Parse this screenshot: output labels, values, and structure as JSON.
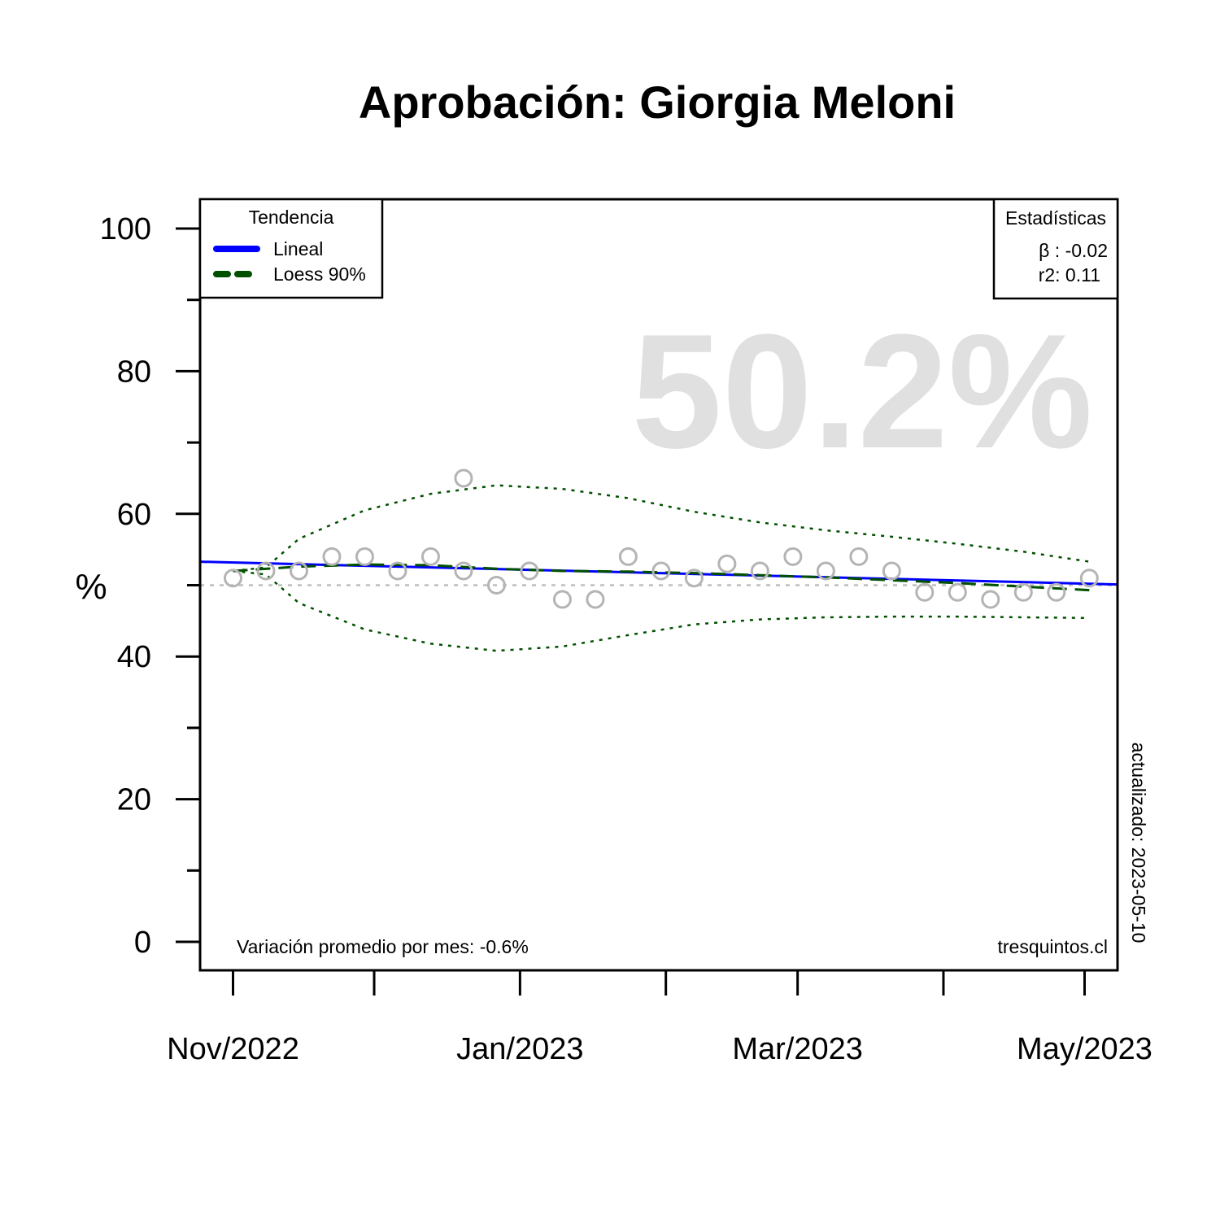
{
  "chart_data": {
    "type": "scatter",
    "title": "Aprobación: Giorgia Meloni",
    "xlabel": "",
    "ylabel": "%",
    "ylim": [
      0,
      100
    ],
    "y_ticks": [
      0,
      20,
      40,
      60,
      80,
      100
    ],
    "x_tick_labels": [
      {
        "date": "2022-11-01",
        "label": "Nov/2022"
      },
      {
        "date": "2023-01-01",
        "label": "Jan/2023"
      },
      {
        "date": "2023-03-01",
        "label": "Mar/2023"
      },
      {
        "date": "2023-05-01",
        "label": "May/2023"
      }
    ],
    "x_minor_ticks": [
      "2022-12-01",
      "2023-02-01",
      "2023-04-01"
    ],
    "x_range": [
      "2022-10-25",
      "2023-05-08"
    ],
    "points": [
      {
        "x": "2022-11-01",
        "y": 51
      },
      {
        "x": "2022-11-08",
        "y": 52
      },
      {
        "x": "2022-11-15",
        "y": 52
      },
      {
        "x": "2022-11-22",
        "y": 54
      },
      {
        "x": "2022-11-29",
        "y": 54
      },
      {
        "x": "2022-12-06",
        "y": 52
      },
      {
        "x": "2022-12-13",
        "y": 54
      },
      {
        "x": "2022-12-20",
        "y": 65
      },
      {
        "x": "2022-12-20",
        "y": 52
      },
      {
        "x": "2022-12-27",
        "y": 50
      },
      {
        "x": "2023-01-03",
        "y": 52
      },
      {
        "x": "2023-01-10",
        "y": 48
      },
      {
        "x": "2023-01-17",
        "y": 48
      },
      {
        "x": "2023-01-24",
        "y": 54
      },
      {
        "x": "2023-01-31",
        "y": 52
      },
      {
        "x": "2023-02-07",
        "y": 51
      },
      {
        "x": "2023-02-14",
        "y": 53
      },
      {
        "x": "2023-02-21",
        "y": 52
      },
      {
        "x": "2023-02-28",
        "y": 54
      },
      {
        "x": "2023-03-07",
        "y": 52
      },
      {
        "x": "2023-03-14",
        "y": 54
      },
      {
        "x": "2023-03-21",
        "y": 52
      },
      {
        "x": "2023-03-28",
        "y": 49
      },
      {
        "x": "2023-04-04",
        "y": 49
      },
      {
        "x": "2023-04-11",
        "y": 48
      },
      {
        "x": "2023-04-18",
        "y": 49
      },
      {
        "x": "2023-04-25",
        "y": 49
      },
      {
        "x": "2023-05-02",
        "y": 51
      }
    ],
    "linear_trend": [
      {
        "x": "2022-10-25",
        "y": 53.3
      },
      {
        "x": "2023-05-08",
        "y": 50.1
      }
    ],
    "loess": [
      {
        "x": "2022-11-01",
        "y": 52.0
      },
      {
        "x": "2022-11-15",
        "y": 52.6
      },
      {
        "x": "2022-11-29",
        "y": 52.9
      },
      {
        "x": "2022-12-13",
        "y": 52.8
      },
      {
        "x": "2022-12-27",
        "y": 52.3
      },
      {
        "x": "2023-01-10",
        "y": 52.0
      },
      {
        "x": "2023-01-24",
        "y": 51.9
      },
      {
        "x": "2023-02-07",
        "y": 51.7
      },
      {
        "x": "2023-02-21",
        "y": 51.4
      },
      {
        "x": "2023-03-07",
        "y": 51.1
      },
      {
        "x": "2023-03-21",
        "y": 50.7
      },
      {
        "x": "2023-04-04",
        "y": 50.3
      },
      {
        "x": "2023-04-18",
        "y": 49.8
      },
      {
        "x": "2023-05-02",
        "y": 49.3
      }
    ],
    "loess_upper": [
      {
        "x": "2022-11-01",
        "y": 52.0
      },
      {
        "x": "2022-11-08",
        "y": 52.5
      },
      {
        "x": "2022-11-15",
        "y": 56.5
      },
      {
        "x": "2022-11-29",
        "y": 60.5
      },
      {
        "x": "2022-12-13",
        "y": 62.8
      },
      {
        "x": "2022-12-27",
        "y": 64.0
      },
      {
        "x": "2023-01-10",
        "y": 63.5
      },
      {
        "x": "2023-01-24",
        "y": 62.2
      },
      {
        "x": "2023-02-07",
        "y": 60.3
      },
      {
        "x": "2023-02-21",
        "y": 58.8
      },
      {
        "x": "2023-03-07",
        "y": 57.7
      },
      {
        "x": "2023-03-21",
        "y": 56.8
      },
      {
        "x": "2023-04-04",
        "y": 55.8
      },
      {
        "x": "2023-04-18",
        "y": 54.7
      },
      {
        "x": "2023-05-02",
        "y": 53.3
      }
    ],
    "loess_lower": [
      {
        "x": "2022-11-01",
        "y": 52.0
      },
      {
        "x": "2022-11-08",
        "y": 51.5
      },
      {
        "x": "2022-11-15",
        "y": 47.5
      },
      {
        "x": "2022-11-29",
        "y": 43.8
      },
      {
        "x": "2022-12-13",
        "y": 41.8
      },
      {
        "x": "2022-12-27",
        "y": 40.8
      },
      {
        "x": "2023-01-10",
        "y": 41.4
      },
      {
        "x": "2023-01-24",
        "y": 43.0
      },
      {
        "x": "2023-02-07",
        "y": 44.5
      },
      {
        "x": "2023-02-21",
        "y": 45.2
      },
      {
        "x": "2023-03-07",
        "y": 45.5
      },
      {
        "x": "2023-03-21",
        "y": 45.6
      },
      {
        "x": "2023-04-04",
        "y": 45.6
      },
      {
        "x": "2023-04-18",
        "y": 45.5
      },
      {
        "x": "2023-05-02",
        "y": 45.4
      }
    ],
    "reference_line_y": 50,
    "legend": {
      "title": "Tendencia",
      "placement": "top-left",
      "entries": [
        {
          "name": "Lineal",
          "color": "#0000ff",
          "style": "solid"
        },
        {
          "name": "Loess 90%",
          "color": "#005000",
          "style": "dashed"
        }
      ]
    },
    "stats": {
      "title": "Estadísticas",
      "beta": "β : -0.02",
      "r2": "r2: 0.11",
      "placement": "top-right"
    },
    "big_value": "50.2%",
    "footer_left": "Variación promedio por mes: -0.6%",
    "footer_right": "tresquintos.cl",
    "updated": "actualizado: 2023-05-10",
    "colors": {
      "points": "#b4b4b4",
      "linear": "#0000ff",
      "loess": "#005000",
      "reference": "#bebebe",
      "big_value": "#e0e0e0"
    }
  }
}
